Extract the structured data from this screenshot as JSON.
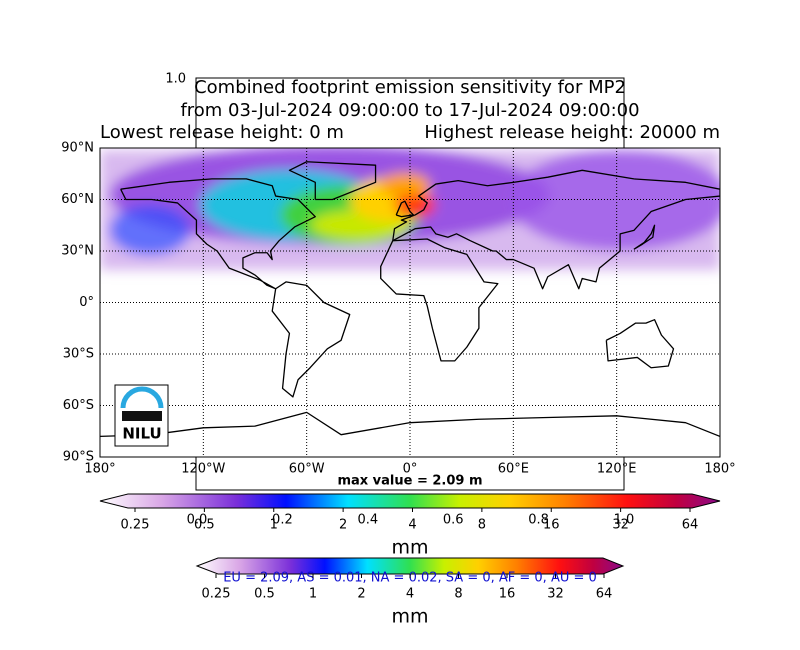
{
  "figure": {
    "corner_label": "1.0",
    "title": [
      "Combined footprint emission sensitivity for MP2",
      "from 03-Jul-2024 09:00:00 to 17-Jul-2024 09:00:00"
    ],
    "release_heights": [
      "Lowest release height: 0 m",
      "Highest release height: 20000 m"
    ],
    "map": {
      "lat_labels": [
        "90°N",
        "60°N",
        "30°N",
        "0°",
        "30°S",
        "60°S",
        "90°S"
      ],
      "lon_labels": [
        "180°",
        "120°W",
        "60°W",
        "0°",
        "60°E",
        "120°E",
        "180°"
      ],
      "max_value": "max value = 2.09 m",
      "logo": "NILU"
    },
    "colorbar": {
      "ticks": [
        "0.25",
        "0.5",
        "1",
        "2",
        "4",
        "8",
        "16",
        "32",
        "64"
      ],
      "label": "mm"
    },
    "overlay_ticks": [
      "0.0",
      "0.2",
      "0.4",
      "0.6",
      "0.8",
      "1.0"
    ],
    "colorbar2": {
      "ticks": [
        "0.25",
        "0.5",
        "1",
        "2",
        "4",
        "8",
        "16",
        "32",
        "64"
      ],
      "label": "mm",
      "region_summary": "EU = 2.09,  AS = 0.01,  NA = 0.02,  SA = 0,  AF = 0,  AU = 0"
    }
  }
}
